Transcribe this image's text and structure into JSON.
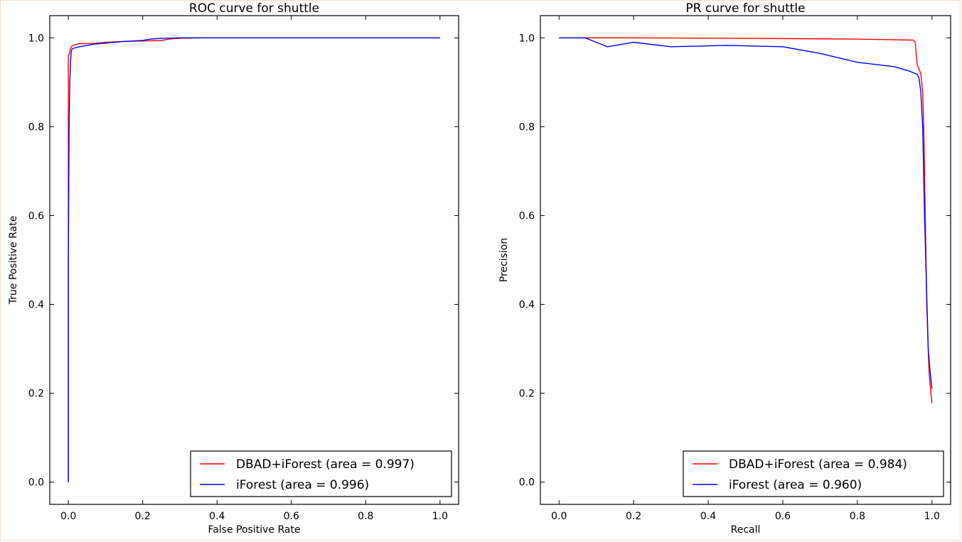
{
  "colors": {
    "red_series": "#ff0000",
    "blue_series": "#0000ff",
    "axes": "#000000",
    "background": "#ffffff",
    "frame": "#f3dccb"
  },
  "chart_data": [
    {
      "type": "line",
      "title": "ROC curve for shuttle",
      "xlabel": "False Positive Rate",
      "ylabel": "True Positive Rate",
      "xlim": [
        -0.05,
        1.05
      ],
      "ylim": [
        -0.05,
        1.05
      ],
      "xticks": [
        "0.0",
        "0.2",
        "0.4",
        "0.6",
        "0.8",
        "1.0"
      ],
      "yticks": [
        "0.0",
        "0.2",
        "0.4",
        "0.6",
        "0.8",
        "1.0"
      ],
      "grid": false,
      "legend_position": "lower-right",
      "series": [
        {
          "name": "DBAD+iForest (area = 0.997)",
          "color": "red",
          "x": [
            0.0,
            0.0,
            0.001,
            0.002,
            0.003,
            0.005,
            0.008,
            0.012,
            0.02,
            0.03,
            0.05,
            0.08,
            0.1,
            0.15,
            0.2,
            0.25,
            0.27,
            0.3,
            0.35,
            0.5,
            1.0
          ],
          "y": [
            0.0,
            0.96,
            0.962,
            0.962,
            0.965,
            0.975,
            0.98,
            0.983,
            0.985,
            0.987,
            0.987,
            0.988,
            0.99,
            0.992,
            0.993,
            0.994,
            0.997,
            0.999,
            1.0,
            1.0,
            1.0
          ]
        },
        {
          "name": "iForest (area = 0.996)",
          "color": "blue",
          "x": [
            0.0,
            0.0,
            0.002,
            0.004,
            0.006,
            0.008,
            0.01,
            0.015,
            0.02,
            0.03,
            0.05,
            0.07,
            0.1,
            0.15,
            0.2,
            0.22,
            0.25,
            0.3,
            0.37,
            0.5,
            1.0
          ],
          "y": [
            0.0,
            0.5,
            0.8,
            0.9,
            0.95,
            0.97,
            0.975,
            0.977,
            0.978,
            0.98,
            0.983,
            0.986,
            0.988,
            0.992,
            0.994,
            0.997,
            0.999,
            1.0,
            1.0,
            1.0,
            1.0
          ]
        }
      ]
    },
    {
      "type": "line",
      "title": "PR curve for shuttle",
      "xlabel": "Recall",
      "ylabel": "Precision",
      "xlim": [
        -0.05,
        1.05
      ],
      "ylim": [
        -0.05,
        1.05
      ],
      "xticks": [
        "0.0",
        "0.2",
        "0.4",
        "0.6",
        "0.8",
        "1.0"
      ],
      "yticks": [
        "0.0",
        "0.2",
        "0.4",
        "0.6",
        "0.8",
        "1.0"
      ],
      "grid": false,
      "legend_position": "lower-right",
      "series": [
        {
          "name": "DBAD+iForest (area = 0.984)",
          "color": "red",
          "x": [
            0.0,
            0.2,
            0.5,
            0.8,
            0.95,
            0.955,
            0.96,
            0.965,
            0.97,
            0.975,
            0.978,
            0.98,
            0.982,
            0.984,
            0.986,
            0.988,
            0.99,
            0.992,
            0.995,
            0.997,
            1.0
          ],
          "y": [
            1.0,
            1.0,
            0.999,
            0.997,
            0.995,
            0.99,
            0.94,
            0.93,
            0.92,
            0.88,
            0.8,
            0.7,
            0.6,
            0.5,
            0.4,
            0.35,
            0.3,
            0.25,
            0.22,
            0.2,
            0.178
          ]
        },
        {
          "name": "iForest (area = 0.960)",
          "color": "blue",
          "x": [
            0.0,
            0.07,
            0.1,
            0.13,
            0.2,
            0.3,
            0.45,
            0.6,
            0.7,
            0.8,
            0.9,
            0.94,
            0.96,
            0.965,
            0.97,
            0.975,
            0.98,
            0.985,
            0.99,
            0.995,
            1.0
          ],
          "y": [
            1.0,
            1.0,
            0.99,
            0.98,
            0.99,
            0.98,
            0.983,
            0.98,
            0.965,
            0.945,
            0.935,
            0.925,
            0.918,
            0.91,
            0.88,
            0.8,
            0.6,
            0.45,
            0.3,
            0.25,
            0.21
          ]
        }
      ]
    }
  ]
}
